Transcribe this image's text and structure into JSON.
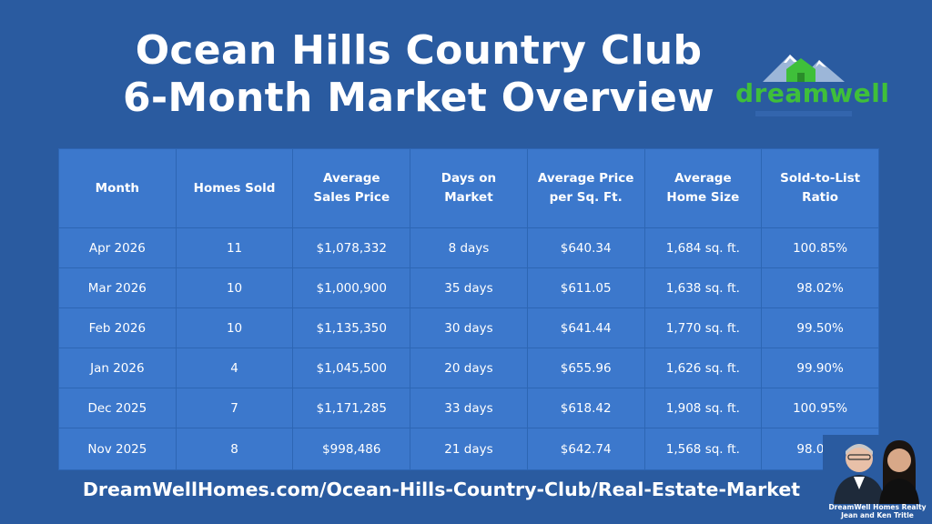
{
  "title": {
    "line1": "Ocean Hills Country Club",
    "line2": "6-Month Market Overview"
  },
  "logo": {
    "text": "dreamwell",
    "icon": "house-mountain-icon",
    "color": "#3fbf3a"
  },
  "table": {
    "headers": [
      "Month",
      "Homes Sold",
      "Average Sales Price",
      "Days on Market",
      "Average Price per Sq. Ft.",
      "Average Home Size",
      "Sold-to-List Ratio"
    ],
    "rows": [
      [
        "Apr 2026",
        "11",
        "$1,078,332",
        "8 days",
        "$640.34",
        "1,684 sq. ft.",
        "100.85%"
      ],
      [
        "Mar 2026",
        "10",
        "$1,000,900",
        "35 days",
        "$611.05",
        "1,638 sq. ft.",
        "98.02%"
      ],
      [
        "Feb 2026",
        "10",
        "$1,135,350",
        "30 days",
        "$641.44",
        "1,770 sq. ft.",
        "99.50%"
      ],
      [
        "Jan 2026",
        "4",
        "$1,045,500",
        "20 days",
        "$655.96",
        "1,626 sq. ft.",
        "99.90%"
      ],
      [
        "Dec 2025",
        "7",
        "$1,171,285",
        "33 days",
        "$618.42",
        "1,908 sq. ft.",
        "100.95%"
      ],
      [
        "Nov 2025",
        "8",
        "$998,486",
        "21 days",
        "$642.74",
        "1,568 sq. ft.",
        "98.03%"
      ]
    ]
  },
  "footer": {
    "url": "DreamWellHomes.com/Ocean-Hills-Country-Club/Real-Estate-Market",
    "agent_line1": "DreamWell Homes Realty",
    "agent_line2": "Jean and Ken Tritle"
  },
  "colors": {
    "background": "#2a5ba0",
    "table": "#3c78cc"
  }
}
